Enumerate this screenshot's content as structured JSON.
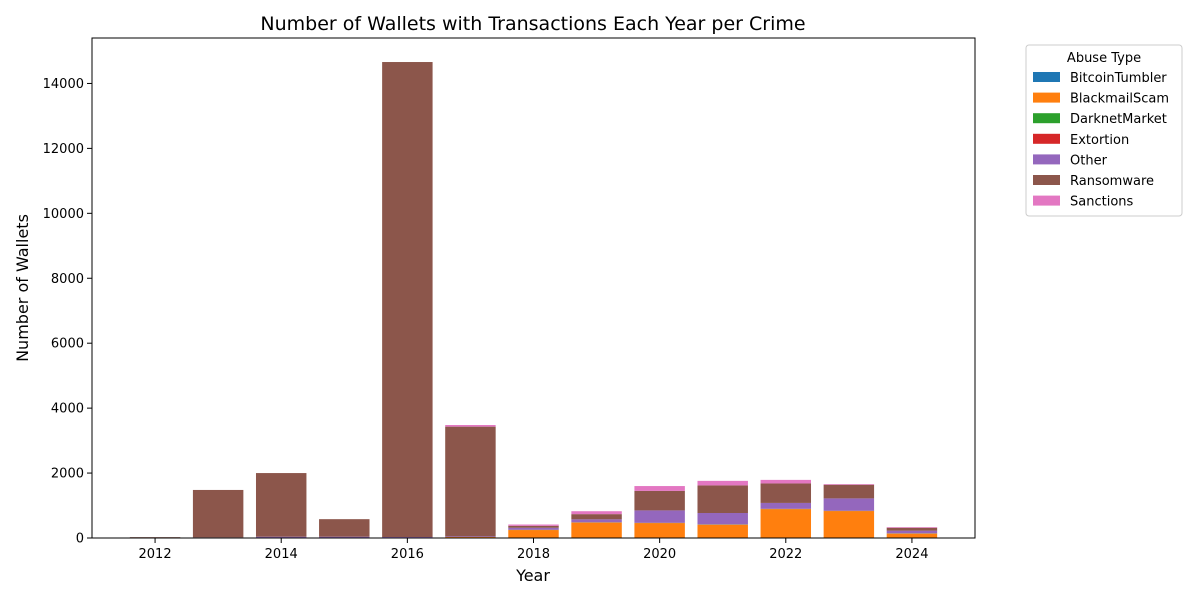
{
  "chart_data": {
    "type": "bar",
    "stacked": true,
    "title": "Number of Wallets with Transactions Each Year per Crime",
    "xlabel": "Year",
    "ylabel": "Number of Wallets",
    "x": [
      2012,
      2013,
      2014,
      2015,
      2016,
      2017,
      2018,
      2019,
      2020,
      2021,
      2022,
      2023,
      2024
    ],
    "x_ticks": [
      "2012",
      "2014",
      "2016",
      "2018",
      "2020",
      "2022",
      "2024"
    ],
    "xlim": [
      2011,
      2025
    ],
    "ylim": [
      0,
      15400
    ],
    "y_ticks": [
      "0",
      "2000",
      "4000",
      "6000",
      "8000",
      "10000",
      "12000",
      "14000"
    ],
    "grid": false,
    "legend": {
      "title": "Abuse Type",
      "placement": "outside-right-top"
    },
    "series": [
      {
        "name": "BitcoinTumbler",
        "color": "#1f77b4",
        "values": [
          0,
          0,
          0,
          0,
          0,
          0,
          5,
          5,
          10,
          10,
          10,
          10,
          5
        ]
      },
      {
        "name": "BlackmailScam",
        "color": "#ff7f0e",
        "values": [
          0,
          0,
          0,
          0,
          0,
          30,
          240,
          470,
          450,
          400,
          880,
          820,
          130
        ]
      },
      {
        "name": "DarknetMarket",
        "color": "#2ca02c",
        "values": [
          0,
          0,
          0,
          0,
          0,
          0,
          5,
          5,
          5,
          5,
          5,
          5,
          5
        ]
      },
      {
        "name": "Extortion",
        "color": "#d62728",
        "values": [
          0,
          0,
          0,
          0,
          0,
          0,
          5,
          5,
          5,
          5,
          5,
          5,
          5
        ]
      },
      {
        "name": "Other",
        "color": "#9467bd",
        "values": [
          5,
          20,
          40,
          40,
          30,
          20,
          60,
          90,
          380,
          350,
          180,
          380,
          80
        ]
      },
      {
        "name": "Ransomware",
        "color": "#8c564b",
        "values": [
          20,
          1460,
          1960,
          540,
          14630,
          3380,
          60,
          160,
          600,
          850,
          600,
          420,
          90
        ]
      },
      {
        "name": "Sanctions",
        "color": "#e377c2",
        "values": [
          0,
          0,
          0,
          0,
          0,
          50,
          40,
          90,
          150,
          140,
          110,
          20,
          20
        ]
      }
    ]
  }
}
